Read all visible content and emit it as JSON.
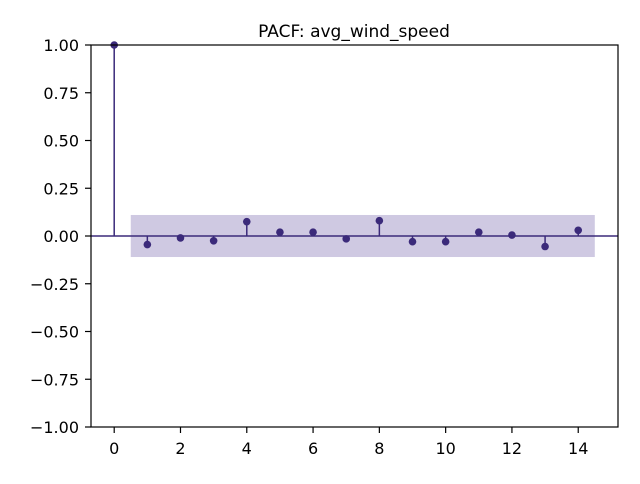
{
  "chart_data": {
    "type": "stem",
    "title": "PACF: avg_wind_speed",
    "xlabel": "",
    "ylabel": "",
    "x": [
      0,
      1,
      2,
      3,
      4,
      5,
      6,
      7,
      8,
      9,
      10,
      11,
      12,
      13,
      14
    ],
    "values": [
      1.0,
      -0.045,
      -0.01,
      -0.025,
      0.075,
      0.02,
      0.02,
      -0.015,
      0.08,
      -0.03,
      -0.03,
      0.02,
      0.005,
      -0.055,
      0.03
    ],
    "confidence_band": [
      -0.11,
      0.11
    ],
    "xlim": [
      -0.7,
      15.2
    ],
    "ylim": [
      -1.0,
      1.0
    ],
    "xticks": [
      0,
      2,
      4,
      6,
      8,
      10,
      12,
      14
    ],
    "xtick_labels": [
      "0",
      "2",
      "4",
      "6",
      "8",
      "10",
      "12",
      "14"
    ],
    "yticks": [
      -1.0,
      -0.75,
      -0.5,
      -0.25,
      0.0,
      0.25,
      0.5,
      0.75,
      1.0
    ],
    "ytick_labels": [
      "−1.00",
      "−0.75",
      "−0.50",
      "−0.25",
      "0.00",
      "0.25",
      "0.50",
      "0.75",
      "1.00"
    ],
    "grid": false,
    "colors": {
      "stem": "#3b2a7a",
      "band": "#cfc9e2",
      "zero_line": "#3b2a7a",
      "axes": "#000000"
    }
  }
}
